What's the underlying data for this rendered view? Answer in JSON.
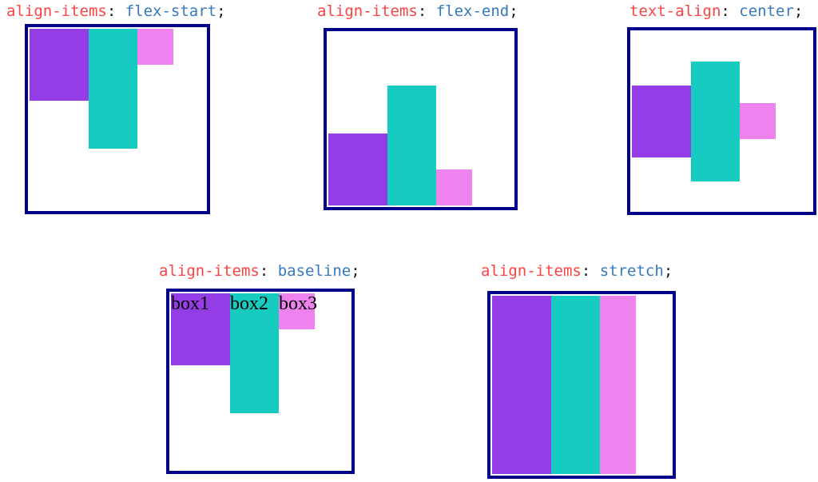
{
  "colors": {
    "border": "#00008B",
    "box1": "#943CE6",
    "box2": "#16CCC1",
    "box3": "#EE82EE",
    "property": "#FC4242",
    "value": "#3679BC",
    "punctuation": "#1B1B1B"
  },
  "panels": [
    {
      "name": "align-items-flex-start",
      "label": {
        "property": "align-items",
        "separator": ": ",
        "value": "flex-start",
        "terminator": ";"
      }
    },
    {
      "name": "align-items-flex-end",
      "label": {
        "property": "align-items",
        "separator": ": ",
        "value": "flex-end",
        "terminator": ";"
      }
    },
    {
      "name": "text-align-center",
      "label": {
        "property": "text-align",
        "separator": ": ",
        "value": "center",
        "terminator": ";"
      }
    },
    {
      "name": "align-items-baseline",
      "label": {
        "property": "align-items",
        "separator": ": ",
        "value": "baseline",
        "terminator": ";"
      },
      "boxes": [
        {
          "text": "box1"
        },
        {
          "text": "box2"
        },
        {
          "text": "box3"
        }
      ]
    },
    {
      "name": "align-items-stretch",
      "label": {
        "property": "align-items",
        "separator": ": ",
        "value": "stretch",
        "terminator": ";"
      }
    }
  ]
}
